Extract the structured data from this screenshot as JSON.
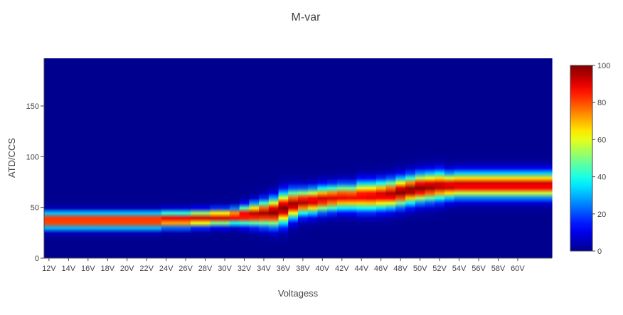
{
  "chart_data": {
    "type": "heatmap",
    "title": "M-var",
    "xlabel": "Voltagess",
    "ylabel": "ATD/CCS",
    "x_tick_labels": [
      "12V",
      "14V",
      "16V",
      "18V",
      "20V",
      "22V",
      "24V",
      "26V",
      "28V",
      "30V",
      "32V",
      "34V",
      "36V",
      "38V",
      "40V",
      "42V",
      "44V",
      "46V",
      "48V",
      "50V",
      "52V",
      "54V",
      "56V",
      "58V",
      "60V"
    ],
    "x_values": [
      "12V",
      "13V",
      "14V",
      "15V",
      "16V",
      "17V",
      "18V",
      "19V",
      "20V",
      "21V",
      "22V",
      "23V",
      "24V",
      "25V",
      "26V",
      "27V",
      "28V",
      "29V",
      "30V",
      "31V",
      "32V",
      "33V",
      "34V",
      "35V",
      "36V",
      "37V",
      "38V",
      "39V",
      "40V",
      "41V",
      "42V",
      "43V",
      "44V",
      "45V",
      "46V",
      "47V",
      "48V",
      "49V",
      "50V",
      "51V",
      "52V",
      "53V",
      "54V",
      "55V",
      "56V",
      "57V",
      "58V",
      "59V",
      "60V",
      "61V",
      "62V",
      "63V"
    ],
    "y_ticks": [
      0,
      50,
      100,
      150
    ],
    "ylim": [
      0,
      197
    ],
    "ridge_center": [
      37,
      37,
      37,
      37,
      37,
      37,
      37,
      37,
      37,
      37,
      37,
      37,
      38,
      38,
      38,
      39,
      39,
      40,
      40,
      41,
      42,
      43,
      44,
      45,
      49,
      53,
      55,
      56,
      58,
      59,
      60,
      60,
      61,
      61,
      62,
      63,
      65,
      67,
      69,
      70,
      71,
      71,
      72,
      72,
      72,
      72,
      72,
      72,
      72,
      72,
      72,
      72
    ],
    "ridge_peak": [
      92,
      92,
      92,
      92,
      92,
      92,
      92,
      92,
      92,
      92,
      92,
      92,
      92,
      92,
      92,
      92,
      92,
      92,
      92,
      92,
      94,
      96,
      97,
      100,
      100,
      98,
      96,
      94,
      93,
      91,
      90,
      89,
      90,
      91,
      93,
      96,
      100,
      100,
      100,
      98,
      96,
      95,
      94,
      94,
      94,
      94,
      94,
      94,
      94,
      94,
      94,
      94
    ],
    "ridge_halfwidth": [
      5,
      5,
      5,
      5,
      5,
      5,
      5,
      5,
      5,
      5,
      5,
      5,
      5,
      5,
      5,
      5,
      5,
      5,
      5,
      5,
      6,
      7,
      8,
      9,
      10,
      9,
      8,
      8,
      8,
      8,
      8,
      8,
      9,
      9,
      9,
      9,
      9,
      9,
      9,
      9,
      9,
      8,
      8,
      8,
      8,
      8,
      8,
      8,
      8,
      8,
      8,
      8
    ],
    "colorbar": {
      "min": 0,
      "max": 100,
      "ticks": [
        0,
        20,
        40,
        60,
        80,
        100
      ],
      "colorscale": [
        "#00008f",
        "#0000ff",
        "#00ffff",
        "#ffff00",
        "#ff0000",
        "#800000"
      ]
    }
  }
}
